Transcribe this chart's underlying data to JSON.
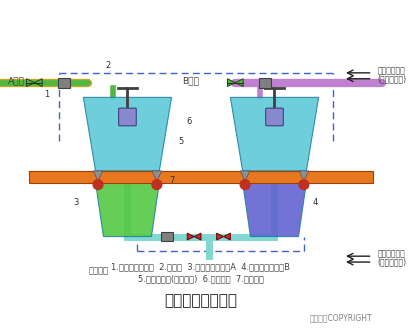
{
  "title": "荷重传感器的应用",
  "subtitle1": "1.电动比例调节阀  2.膨胀节  3.化学原料储液罐A  4.化学原料储液罐B",
  "subtitle2": "5.荷重传感器(每罐四只)  6.支撑结构  7.支撑平台",
  "copyright": "东方仿真COPYRIGHT",
  "label_A": "A液体",
  "label_B": "B液体",
  "label_signal1": "液面控制信号",
  "label_signal1b": "(从计算机来)",
  "label_signal2": "混合比例信号",
  "label_signal2b": "(从计算机来)",
  "label_tower": "去反应塔",
  "bg_color": "#ffffff",
  "orange_platform_color": "#e87820",
  "tank_A_top_color": "#5bc8d8",
  "tank_A_bottom_color": "#50c840",
  "tank_B_top_color": "#5bc8d8",
  "tank_B_bottom_color": "#6060d0",
  "pipe_color_green": "#50b840",
  "pipe_color_purple": "#c080d0",
  "pipe_color_cyan": "#80d8d0",
  "valve_color": "#c03020",
  "dashed_color": "#4060d0",
  "text_color": "#404040",
  "number_labels": [
    "1",
    "2",
    "3",
    "4",
    "5",
    "6",
    "7"
  ]
}
